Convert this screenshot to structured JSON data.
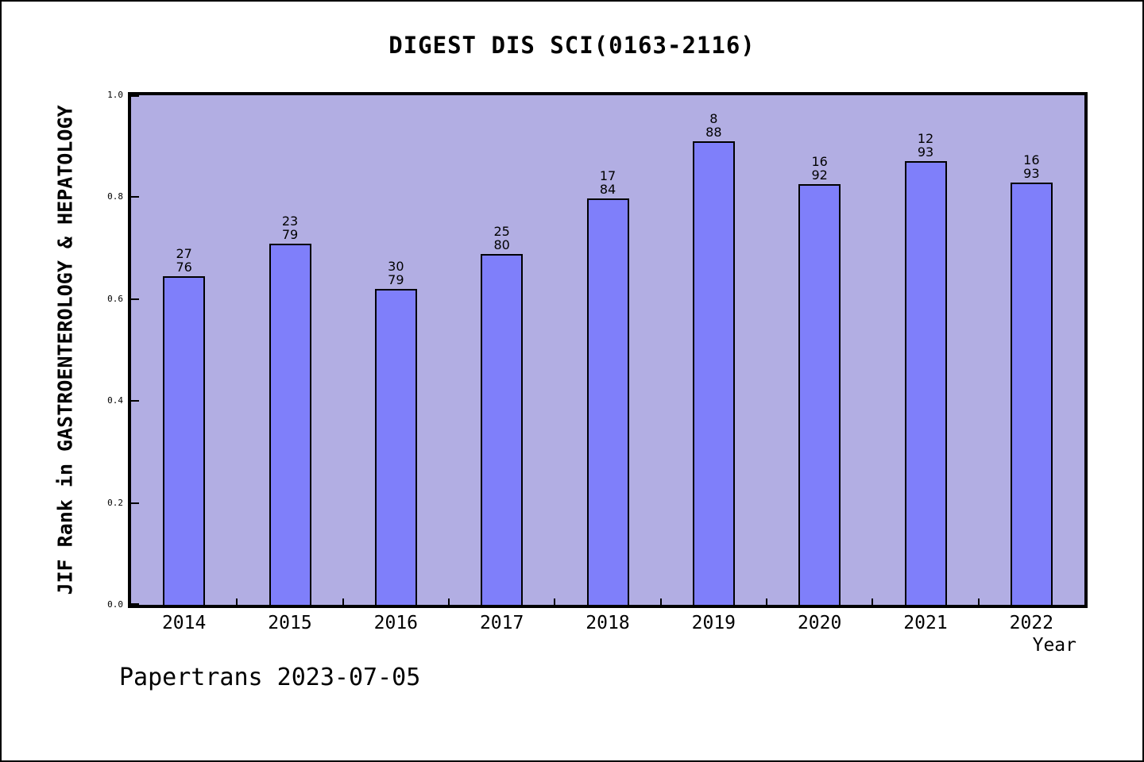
{
  "title": "DIGEST DIS SCI(0163-2116)",
  "footer": "Papertrans 2023-07-05",
  "colors": {
    "bar_fill": "#7f7ffa",
    "bar_border": "#000000",
    "plot_bg": "#b2aee3",
    "frame": "#000000",
    "page_bg": "#ffffff",
    "text": "#000000"
  },
  "chart_data": {
    "type": "bar",
    "title": "DIGEST DIS SCI(0163-2116)",
    "xlabel": "Year",
    "ylabel": "JIF Rank in GASTROENTEROLOGY & HEPATOLOGY",
    "categories": [
      "2014",
      "2015",
      "2016",
      "2017",
      "2018",
      "2019",
      "2020",
      "2021",
      "2022"
    ],
    "bars": [
      {
        "year": "2014",
        "rank": "27",
        "total": "76",
        "value": 0.645
      },
      {
        "year": "2015",
        "rank": "23",
        "total": "79",
        "value": 0.709
      },
      {
        "year": "2016",
        "rank": "30",
        "total": "79",
        "value": 0.62
      },
      {
        "year": "2017",
        "rank": "25",
        "total": "80",
        "value": 0.688
      },
      {
        "year": "2018",
        "rank": "17",
        "total": "84",
        "value": 0.798
      },
      {
        "year": "2019",
        "rank": "8",
        "total": "88",
        "value": 0.909
      },
      {
        "year": "2020",
        "rank": "16",
        "total": "92",
        "value": 0.826
      },
      {
        "year": "2021",
        "rank": "12",
        "total": "93",
        "value": 0.871
      },
      {
        "year": "2022",
        "rank": "16",
        "total": "93",
        "value": 0.828
      }
    ],
    "values": [
      0.645,
      0.709,
      0.62,
      0.688,
      0.798,
      0.909,
      0.826,
      0.871,
      0.828
    ],
    "ylim": [
      0.0,
      1.0
    ],
    "yticks": [
      0.0,
      0.2,
      0.4,
      0.6,
      0.8,
      1.0
    ],
    "ytick_labels": [
      "0.0",
      "0.2",
      "0.4",
      "0.6",
      "0.8",
      "1.0"
    ],
    "grid": false,
    "legend": false,
    "bar_label_format": "rank over total, stacked above each bar"
  }
}
